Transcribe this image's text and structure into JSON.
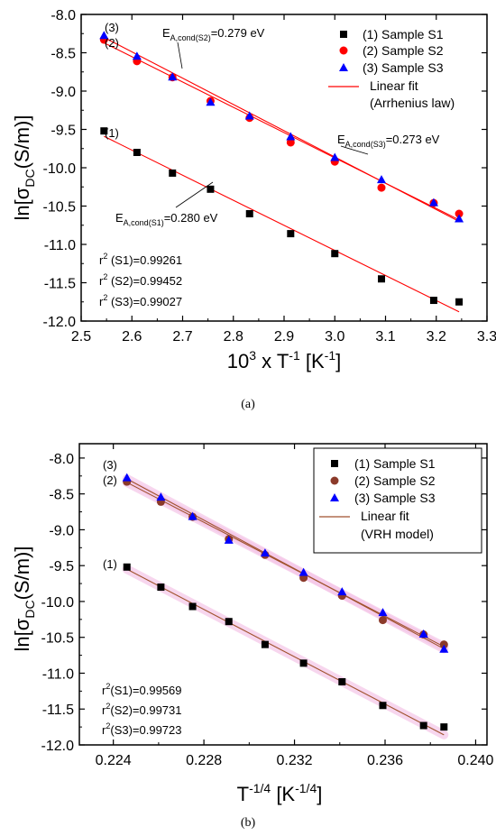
{
  "chart_data": [
    {
      "type": "scatter",
      "panel_caption": "(a)",
      "ylabel": {
        "main": "ln[σ",
        "sub": "DC",
        "rest": "(S/m)]"
      },
      "xlabel": {
        "pre": "10",
        "sup1": "3",
        "mid": " x T",
        "sup2": "-1",
        "post": " [K",
        "sup3": "-1",
        "end": "]"
      },
      "xlim": [
        2.5,
        3.3
      ],
      "ylim": [
        -12.0,
        -8.0
      ],
      "xticks": [
        2.5,
        2.6,
        2.7,
        2.8,
        2.9,
        3.0,
        3.1,
        3.2,
        3.3
      ],
      "xtick_labels": [
        "2.5",
        "2.6",
        "2.7",
        "2.8",
        "2.9",
        "3.0",
        "3.1",
        "3.2",
        "3.3"
      ],
      "yticks": [
        -8.0,
        -8.5,
        -9.0,
        -9.5,
        -10.0,
        -10.5,
        -11.0,
        -11.5,
        -12.0
      ],
      "ytick_labels": [
        "-8.0",
        "-8.5",
        "-9.0",
        "-9.5",
        "-10.0",
        "-10.5",
        "-11.0",
        "-11.5",
        "-12.0"
      ],
      "series": [
        {
          "name": "(1) Sample S1",
          "marker": "square",
          "color": "#000000",
          "label": "(1)",
          "x": [
            2.545,
            2.61,
            2.68,
            2.755,
            2.832,
            2.913,
            3.0,
            3.092,
            3.195,
            3.245
          ],
          "y": [
            -9.52,
            -9.8,
            -10.07,
            -10.28,
            -10.6,
            -10.86,
            -11.12,
            -11.45,
            -11.73,
            -11.75
          ],
          "fit": {
            "x": [
              2.545,
              3.245
            ],
            "y": [
              -9.59,
              -11.88
            ]
          }
        },
        {
          "name": "(2) Sample S2",
          "marker": "circle",
          "color": "#ff0000",
          "label": "(2)",
          "x": [
            2.545,
            2.61,
            2.68,
            2.755,
            2.832,
            2.913,
            3.0,
            3.092,
            3.195,
            3.245
          ],
          "y": [
            -8.33,
            -8.61,
            -8.82,
            -9.13,
            -9.35,
            -9.67,
            -9.92,
            -10.26,
            -10.46,
            -10.6
          ],
          "fit": {
            "x": [
              2.545,
              3.245
            ],
            "y": [
              -8.37,
              -10.68
            ]
          }
        },
        {
          "name": "(3) Sample S3",
          "marker": "triangle",
          "color": "#0000ff",
          "label": "(3)",
          "x": [
            2.545,
            2.61,
            2.68,
            2.755,
            2.832,
            2.913,
            3.0,
            3.092,
            3.195,
            3.245
          ],
          "y": [
            -8.28,
            -8.55,
            -8.82,
            -9.15,
            -9.33,
            -9.6,
            -9.87,
            -10.16,
            -10.46,
            -10.67
          ],
          "fit": {
            "x": [
              2.545,
              3.245
            ],
            "y": [
              -8.3,
              -10.7
            ]
          }
        }
      ],
      "fit_color": "#ff0000",
      "legend": {
        "placement": "top-right",
        "items": [
          "(1) Sample S1",
          "(2) Sample S2",
          "(3) Sample S3"
        ],
        "fit_label_1": "Linear fit",
        "fit_label_2": "(Arrhenius law)"
      },
      "annotations": {
        "ea_s2": {
          "main": "E",
          "sub": "A,cond(S2)",
          "rest": "=0.279 eV"
        },
        "ea_s3": {
          "main": "E",
          "sub": "A,cond(S3)",
          "rest": "=0.273 eV"
        },
        "ea_s1": {
          "main": "E",
          "sub": "A,cond(S1)",
          "rest": "=0.280 eV"
        },
        "r2_lines": [
          {
            "pre": "r",
            "sup": "2",
            "post": " (S1)=0.99261"
          },
          {
            "pre": "r",
            "sup": "2",
            "post": " (S2)=0.99452"
          },
          {
            "pre": "r",
            "sup": "2",
            "post": " (S3)=0.99027"
          }
        ]
      }
    },
    {
      "type": "scatter",
      "panel_caption": "(b)",
      "ylabel": {
        "main": "ln[σ",
        "sub": "DC",
        "rest": "(S/m)]"
      },
      "xlabel": {
        "pre": "T",
        "sup1": "-1/4",
        "mid": " [K",
        "sup2": "-1/4",
        "post": "]"
      },
      "xlim": [
        0.2225,
        0.2405
      ],
      "ylim": [
        -12.0,
        -7.8
      ],
      "xticks": [
        0.224,
        0.228,
        0.232,
        0.236,
        0.24
      ],
      "xtick_labels": [
        "0.224",
        "0.228",
        "0.232",
        "0.236",
        "0.240"
      ],
      "yticks": [
        -8.0,
        -8.5,
        -9.0,
        -9.5,
        -10.0,
        -10.5,
        -11.0,
        -11.5,
        -12.0
      ],
      "ytick_labels": [
        "-8.0",
        "-8.5",
        "-9.0",
        "-9.5",
        "-10.0",
        "-10.5",
        "-11.0",
        "-11.5",
        "-12.0"
      ],
      "series": [
        {
          "name": "(1) Sample S1",
          "marker": "square",
          "color": "#000000",
          "label": "(1)",
          "x": [
            0.2246,
            0.2261,
            0.2275,
            0.2291,
            0.2307,
            0.2324,
            0.2341,
            0.2359,
            0.2377,
            0.2386
          ],
          "y": [
            -9.52,
            -9.8,
            -10.07,
            -10.28,
            -10.6,
            -10.86,
            -11.12,
            -11.45,
            -11.73,
            -11.75
          ],
          "fit": {
            "x": [
              0.2246,
              0.2386
            ],
            "y": [
              -9.55,
              -11.86
            ]
          }
        },
        {
          "name": "(2) Sample S2",
          "marker": "circle",
          "color": "#8b3a2a",
          "label": "(2)",
          "x": [
            0.2246,
            0.2261,
            0.2275,
            0.2291,
            0.2307,
            0.2324,
            0.2341,
            0.2359,
            0.2377,
            0.2386
          ],
          "y": [
            -8.33,
            -8.61,
            -8.82,
            -9.13,
            -9.35,
            -9.67,
            -9.92,
            -10.26,
            -10.46,
            -10.6
          ],
          "fit": {
            "x": [
              0.2246,
              0.2386
            ],
            "y": [
              -8.34,
              -10.63
            ]
          }
        },
        {
          "name": "(3) Sample S3",
          "marker": "triangle",
          "color": "#0000ff",
          "label": "(3)",
          "x": [
            0.2246,
            0.2261,
            0.2275,
            0.2291,
            0.2307,
            0.2324,
            0.2341,
            0.2359,
            0.2377,
            0.2386
          ],
          "y": [
            -8.28,
            -8.55,
            -8.82,
            -9.15,
            -9.33,
            -9.6,
            -9.87,
            -10.16,
            -10.46,
            -10.67
          ],
          "fit": {
            "x": [
              0.2246,
              0.2386
            ],
            "y": [
              -8.29,
              -10.66
            ]
          }
        }
      ],
      "fit_color": "#a0522d",
      "band_color": "#f5c6e8",
      "legend": {
        "placement": "top-right",
        "items": [
          "(1) Sample S1",
          "(2) Sample S2",
          "(3) Sample S3"
        ],
        "fit_label_1": "Linear fit",
        "fit_label_2": "(VRH model)"
      },
      "annotations": {
        "r2_lines": [
          {
            "pre": "r",
            "sup": "2",
            "post": "(S1)=0.99569"
          },
          {
            "pre": "r",
            "sup": "2",
            "post": "(S2)=0.99731"
          },
          {
            "pre": "r",
            "sup": "2",
            "post": "(S3)=0.99723"
          }
        ]
      }
    }
  ]
}
